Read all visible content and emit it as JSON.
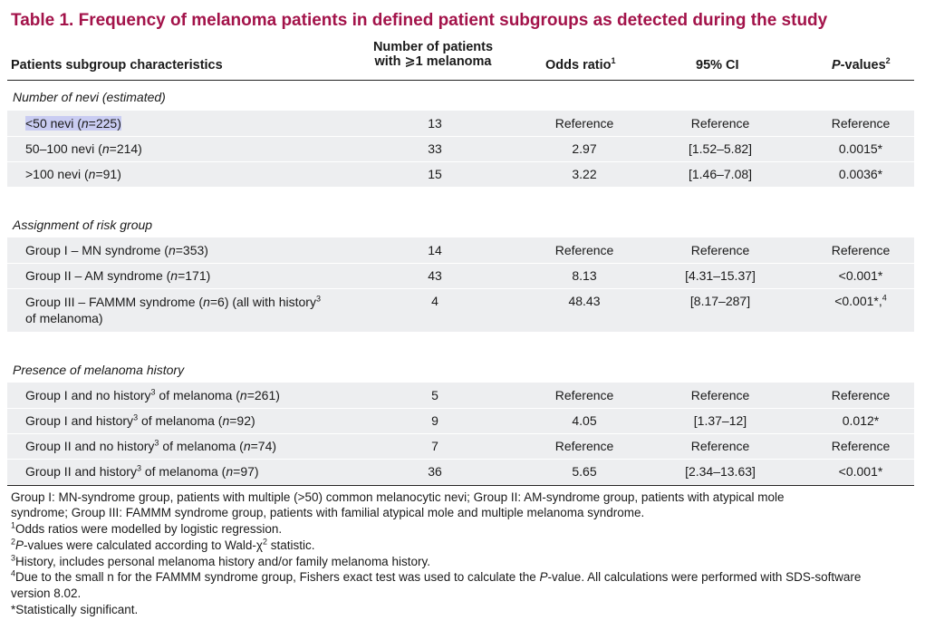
{
  "title": "Table 1.  Frequency of melanoma patients in defined patient subgroups as detected during the study",
  "headers": {
    "characteristics": "Patients subgroup characteristics",
    "number_line1": "Number of patients",
    "number_line2": "with ⩾1 melanoma",
    "odds_ratio": "Odds ratio",
    "odds_ratio_sup": "1",
    "ci": "95% CI",
    "p_italic": "P",
    "p_rest": "-values",
    "p_sup": "2"
  },
  "sections": [
    {
      "title": "Number of nevi (estimated)",
      "rows": [
        {
          "pre": "<50 nevi (",
          "n_label": "n",
          "post": "=225)",
          "sup": "",
          "tail": "",
          "count": "13",
          "or": "Reference",
          "ci": "Reference",
          "p": "Reference"
        },
        {
          "pre": "50–100 nevi (",
          "n_label": "n",
          "post": "=214)",
          "sup": "",
          "tail": "",
          "count": "33",
          "or": "2.97",
          "ci": "[1.52–5.82]",
          "p": "0.0015*"
        },
        {
          "pre": ">100 nevi (",
          "n_label": "n",
          "post": "=91)",
          "sup": "",
          "tail": "",
          "count": "15",
          "or": "3.22",
          "ci": "[1.46–7.08]",
          "p": "0.0036*"
        }
      ]
    },
    {
      "title": "Assignment of risk group",
      "rows": [
        {
          "pre": "Group I – MN syndrome (",
          "n_label": "n",
          "post": "=353)",
          "count": "14",
          "or": "Reference",
          "ci": "Reference",
          "p": "Reference"
        },
        {
          "pre": "Group II – AM syndrome (",
          "n_label": "n",
          "post": "=171)",
          "count": "43",
          "or": "8.13",
          "ci": "[4.31–15.37]",
          "p": "<0.001*"
        },
        {
          "pre": "Group III – FAMMM syndrome (",
          "n_label": "n",
          "post": "=6) (all with history",
          "sup": "3",
          "line2": "of melanoma)",
          "count": "4",
          "or": "48.43",
          "ci": "[8.17–287]",
          "p": "<0.001*,",
          "p_sup": "4"
        }
      ]
    },
    {
      "title": "Presence of melanoma history",
      "rows": [
        {
          "pre": "Group I and no history",
          "sup": "3",
          "mid": " of melanoma (",
          "n_label": "n",
          "post": "=261)",
          "count": "5",
          "or": "Reference",
          "ci": "Reference",
          "p": "Reference"
        },
        {
          "pre": "Group I and history",
          "sup": "3",
          "mid": " of melanoma (",
          "n_label": "n",
          "post": "=92)",
          "count": "9",
          "or": "4.05",
          "ci": "[1.37–12]",
          "p": "0.012*"
        },
        {
          "pre": "Group II and no history",
          "sup": "3",
          "mid": " of melanoma (",
          "n_label": "n",
          "post": "=74)",
          "count": "7",
          "or": "Reference",
          "ci": "Reference",
          "p": "Reference"
        },
        {
          "pre": "Group II and history",
          "sup": "3",
          "mid": " of melanoma (",
          "n_label": "n",
          "post": "=97)",
          "count": "36",
          "or": "5.65",
          "ci": "[2.34–13.63]",
          "p": "<0.001*"
        }
      ]
    }
  ],
  "footnotes": {
    "legend_line1": "Group I: MN-syndrome group, patients with multiple (>50) common melanocytic nevi; Group II: AM-syndrome group, patients with atypical mole",
    "legend_line2": "syndrome; Group III: FAMMM syndrome group, patients with familial atypical mole and multiple melanoma syndrome.",
    "f1_sup": "1",
    "f1": "Odds ratios were modelled by logistic regression.",
    "f2_sup": "2",
    "f2_italic": "P",
    "f2_mid": "-values were calculated according to Wald-χ",
    "f2_sup2": "2",
    "f2_end": " statistic.",
    "f3_sup": "3",
    "f3": "History, includes personal melanoma history and/or family melanoma history.",
    "f4_sup": "4",
    "f4_pre": "Due to the small n for the FAMMM syndrome group, Fishers exact test was used to calculate the ",
    "f4_italic": "P",
    "f4_post": "-value. All calculations were performed with SDS-software",
    "f4_line2": "version 8.02.",
    "f5": "*Statistically significant."
  }
}
